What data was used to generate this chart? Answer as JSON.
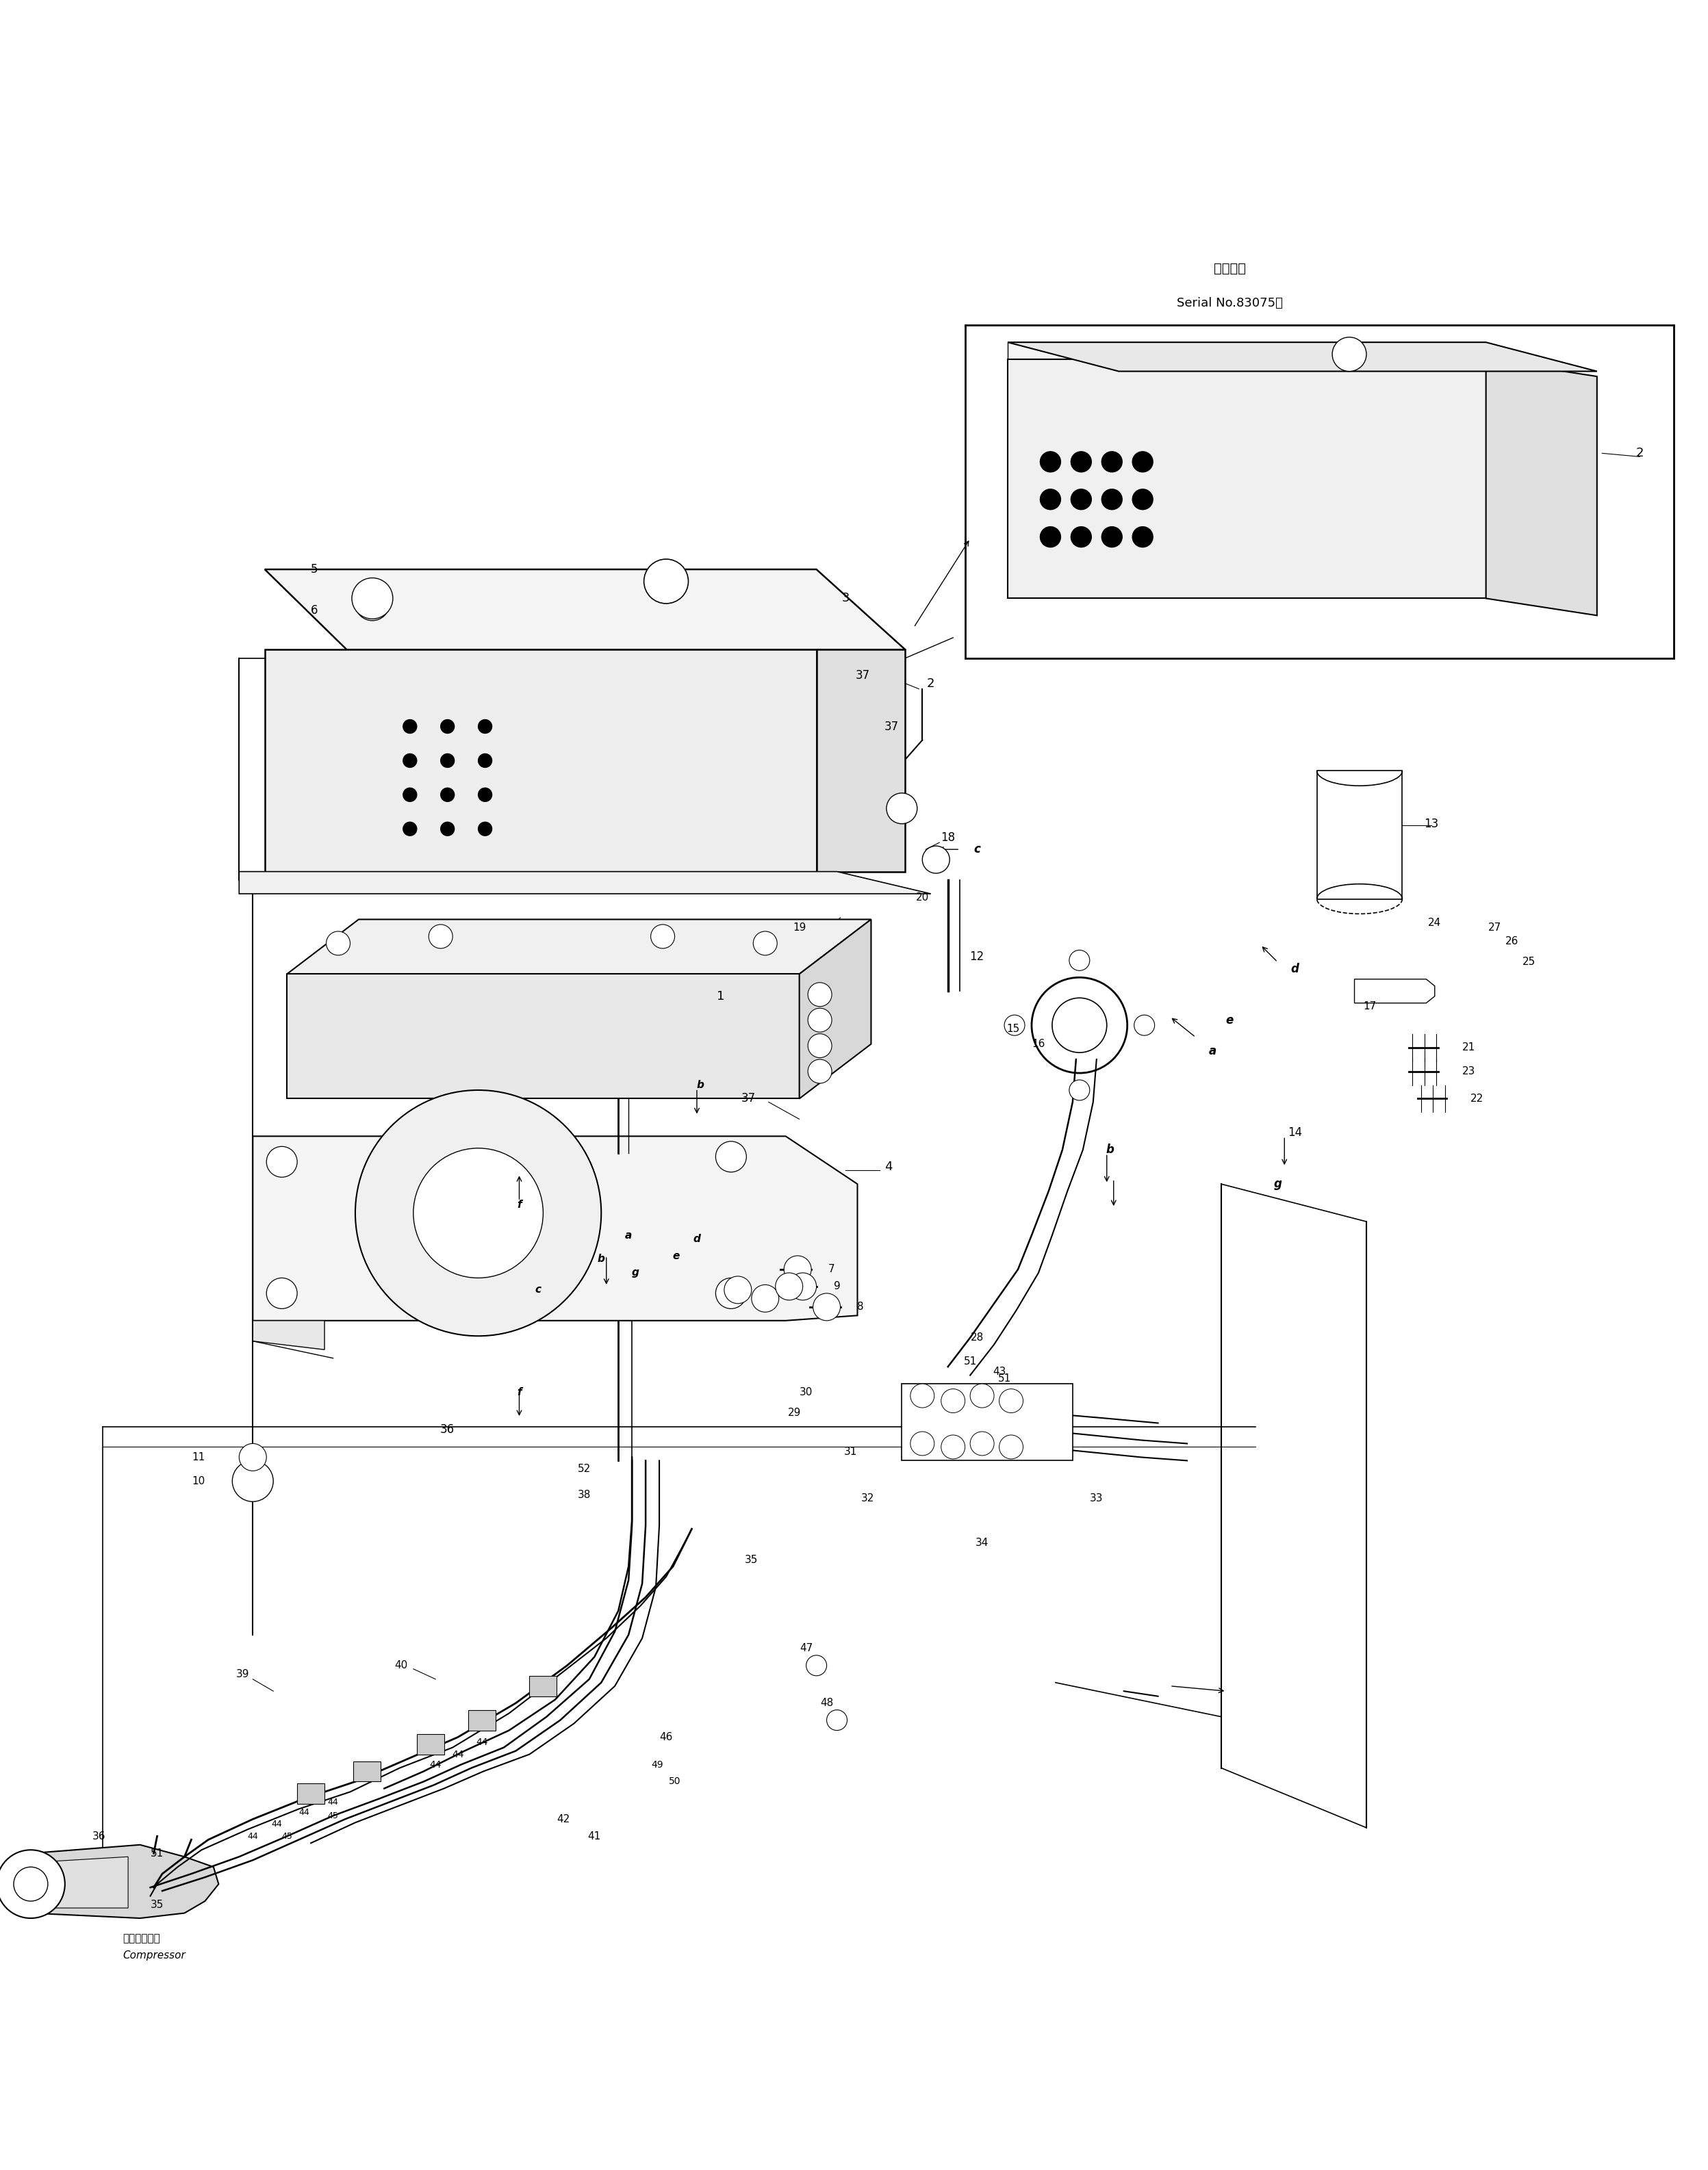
{
  "bg_color": "#ffffff",
  "line_color": "#000000",
  "title_jp": "適用号機",
  "title_serial": "Serial No.83075～",
  "compressor_jp": "コンプレッサ",
  "compressor_en": "Compressor",
  "fig_w": 24.95,
  "fig_h": 31.71
}
